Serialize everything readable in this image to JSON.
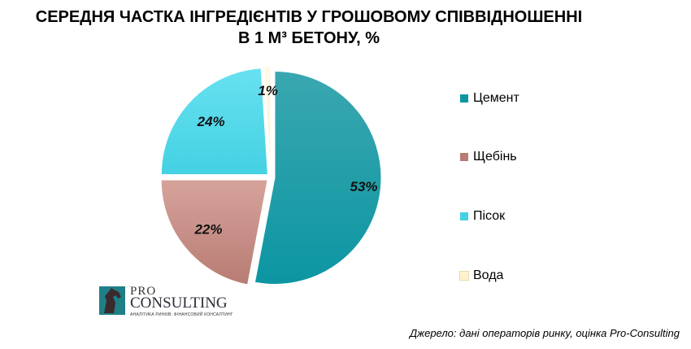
{
  "title": {
    "line1": "СЕРЕДНЯ ЧАСТКА ІНГРЕДІЄНТІВ У ГРОШОВОМУ СПІВВІДНОШЕННІ",
    "line2": "В 1 М³ БЕТОНУ, %"
  },
  "chart_data": {
    "type": "pie",
    "title": "СЕРЕДНЯ ЧАСТКА ІНГРЕДІЄНТІВ У ГРОШОВОМУ СПІВВІДНОШЕННІ В 1 М³ БЕТОНУ, %",
    "legend_position": "right",
    "slices": [
      {
        "label": "Цемент",
        "value": 53,
        "data_label": "53%",
        "color": "#0c96a2",
        "color_light": "#3aa7b0"
      },
      {
        "label": "Щебінь",
        "value": 22,
        "data_label": "22%",
        "color": "#b87c74",
        "color_light": "#d6a39b"
      },
      {
        "label": "Пісок",
        "value": 24,
        "data_label": "24%",
        "color": "#43d1e3",
        "color_light": "#68e1f0"
      },
      {
        "label": "Вода",
        "value": 1,
        "data_label": "1%",
        "color": "#fff2d0",
        "color_light": "#fff8e6"
      }
    ]
  },
  "logo": {
    "pro": "PRO",
    "consulting": "CONSULTING",
    "tagline": "АНАЛІТИКА РИНКІВ. ФІНАНСОВИЙ КОНСАЛТИНГ"
  },
  "source": "Джерело: дані операторів ринку, оцінка Pro-Consulting"
}
